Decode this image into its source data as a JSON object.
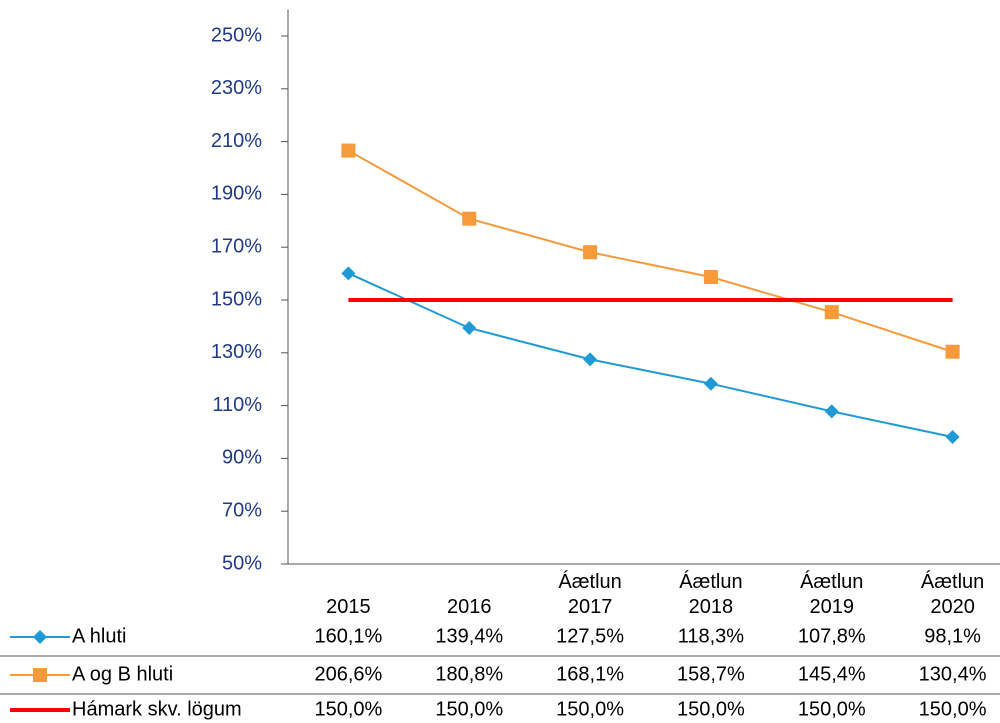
{
  "chart_data": {
    "type": "line",
    "categories": [
      "2015",
      "2016",
      "Áætlun 2017",
      "Áætlun 2018",
      "Áætlun 2019",
      "Áætlun 2020"
    ],
    "series": [
      {
        "name": "A hluti",
        "color": "#1f9ad6",
        "marker": "diamond",
        "values": [
          160.1,
          139.4,
          127.5,
          118.3,
          107.8,
          98.1
        ],
        "value_labels": [
          "160,1%",
          "139,4%",
          "127,5%",
          "118,3%",
          "107,8%",
          "98,1%"
        ]
      },
      {
        "name": "A og B hluti",
        "color": "#f79a3b",
        "marker": "square",
        "values": [
          206.6,
          180.8,
          168.1,
          158.7,
          145.4,
          130.4
        ],
        "value_labels": [
          "206,6%",
          "180,8%",
          "168,1%",
          "158,7%",
          "145,4%",
          "130,4%"
        ]
      },
      {
        "name": "Hámark skv. lögum",
        "color": "#ff0000",
        "marker": "none",
        "values": [
          150,
          150,
          150,
          150,
          150,
          150
        ],
        "value_labels": [
          "150,0%",
          "150,0%",
          "150,0%",
          "150,0%",
          "150,0%",
          "150,0%"
        ]
      }
    ],
    "ylim": [
      50,
      260
    ],
    "yticks": [
      {
        "value": 50,
        "label": "50%"
      },
      {
        "value": 70,
        "label": "70%"
      },
      {
        "value": 90,
        "label": "90%"
      },
      {
        "value": 110,
        "label": "110%"
      },
      {
        "value": 130,
        "label": "130%"
      },
      {
        "value": 150,
        "label": "150%"
      },
      {
        "value": 170,
        "label": "170%"
      },
      {
        "value": 190,
        "label": "190%"
      },
      {
        "value": 210,
        "label": "210%"
      },
      {
        "value": 230,
        "label": "230%"
      },
      {
        "value": 250,
        "label": "250%"
      }
    ],
    "grid": false,
    "legend": "table"
  }
}
